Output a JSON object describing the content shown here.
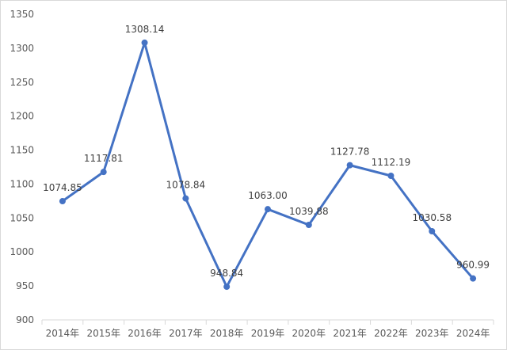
{
  "chart_data": {
    "type": "line",
    "title": "",
    "xlabel": "",
    "ylabel": "",
    "categories": [
      "2014年",
      "2015年",
      "2016年",
      "2017年",
      "2018年",
      "2019年",
      "2020年",
      "2021年",
      "2022年",
      "2023年",
      "2024年"
    ],
    "series": [
      {
        "values": [
          1074.85,
          1117.81,
          1308.14,
          1078.84,
          948.84,
          1063.0,
          1039.88,
          1127.78,
          1112.19,
          1030.58,
          960.99
        ],
        "labels": [
          "1074.85",
          "1117.81",
          "1308.14",
          "1078.84",
          "948.84",
          "1063.00",
          "1039.88",
          "1127.78",
          "1112.19",
          "1030.58",
          "960.99"
        ]
      }
    ],
    "ylim": [
      900,
      1350
    ],
    "yticks": [
      "900",
      "950",
      "1000",
      "1050",
      "1100",
      "1150",
      "1200",
      "1250",
      "1300",
      "1350"
    ],
    "grid": false,
    "legend": "none",
    "colors": {
      "line": "#4472c4",
      "axis": "#d9d9d9",
      "text": "#595959"
    }
  }
}
